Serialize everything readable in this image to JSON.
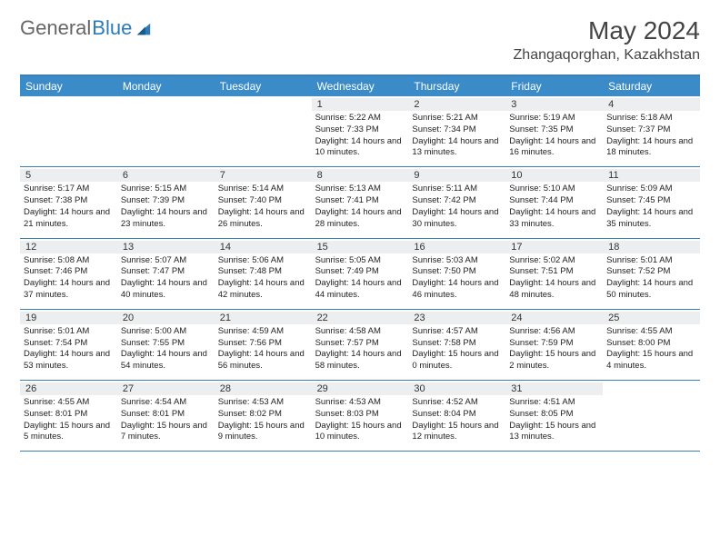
{
  "brand": {
    "part1": "General",
    "part2": "Blue"
  },
  "title": "May 2024",
  "location": "Zhangaqorghan, Kazakhstan",
  "colors": {
    "header_bg": "#3b8bc9",
    "border": "#3b7fb5",
    "daynum_bg": "#eceeef",
    "text": "#222222"
  },
  "dayNames": [
    "Sunday",
    "Monday",
    "Tuesday",
    "Wednesday",
    "Thursday",
    "Friday",
    "Saturday"
  ],
  "weeks": [
    [
      {
        "n": "",
        "sr": "",
        "ss": "",
        "dl": ""
      },
      {
        "n": "",
        "sr": "",
        "ss": "",
        "dl": ""
      },
      {
        "n": "",
        "sr": "",
        "ss": "",
        "dl": ""
      },
      {
        "n": "1",
        "sr": "Sunrise: 5:22 AM",
        "ss": "Sunset: 7:33 PM",
        "dl": "Daylight: 14 hours and 10 minutes."
      },
      {
        "n": "2",
        "sr": "Sunrise: 5:21 AM",
        "ss": "Sunset: 7:34 PM",
        "dl": "Daylight: 14 hours and 13 minutes."
      },
      {
        "n": "3",
        "sr": "Sunrise: 5:19 AM",
        "ss": "Sunset: 7:35 PM",
        "dl": "Daylight: 14 hours and 16 minutes."
      },
      {
        "n": "4",
        "sr": "Sunrise: 5:18 AM",
        "ss": "Sunset: 7:37 PM",
        "dl": "Daylight: 14 hours and 18 minutes."
      }
    ],
    [
      {
        "n": "5",
        "sr": "Sunrise: 5:17 AM",
        "ss": "Sunset: 7:38 PM",
        "dl": "Daylight: 14 hours and 21 minutes."
      },
      {
        "n": "6",
        "sr": "Sunrise: 5:15 AM",
        "ss": "Sunset: 7:39 PM",
        "dl": "Daylight: 14 hours and 23 minutes."
      },
      {
        "n": "7",
        "sr": "Sunrise: 5:14 AM",
        "ss": "Sunset: 7:40 PM",
        "dl": "Daylight: 14 hours and 26 minutes."
      },
      {
        "n": "8",
        "sr": "Sunrise: 5:13 AM",
        "ss": "Sunset: 7:41 PM",
        "dl": "Daylight: 14 hours and 28 minutes."
      },
      {
        "n": "9",
        "sr": "Sunrise: 5:11 AM",
        "ss": "Sunset: 7:42 PM",
        "dl": "Daylight: 14 hours and 30 minutes."
      },
      {
        "n": "10",
        "sr": "Sunrise: 5:10 AM",
        "ss": "Sunset: 7:44 PM",
        "dl": "Daylight: 14 hours and 33 minutes."
      },
      {
        "n": "11",
        "sr": "Sunrise: 5:09 AM",
        "ss": "Sunset: 7:45 PM",
        "dl": "Daylight: 14 hours and 35 minutes."
      }
    ],
    [
      {
        "n": "12",
        "sr": "Sunrise: 5:08 AM",
        "ss": "Sunset: 7:46 PM",
        "dl": "Daylight: 14 hours and 37 minutes."
      },
      {
        "n": "13",
        "sr": "Sunrise: 5:07 AM",
        "ss": "Sunset: 7:47 PM",
        "dl": "Daylight: 14 hours and 40 minutes."
      },
      {
        "n": "14",
        "sr": "Sunrise: 5:06 AM",
        "ss": "Sunset: 7:48 PM",
        "dl": "Daylight: 14 hours and 42 minutes."
      },
      {
        "n": "15",
        "sr": "Sunrise: 5:05 AM",
        "ss": "Sunset: 7:49 PM",
        "dl": "Daylight: 14 hours and 44 minutes."
      },
      {
        "n": "16",
        "sr": "Sunrise: 5:03 AM",
        "ss": "Sunset: 7:50 PM",
        "dl": "Daylight: 14 hours and 46 minutes."
      },
      {
        "n": "17",
        "sr": "Sunrise: 5:02 AM",
        "ss": "Sunset: 7:51 PM",
        "dl": "Daylight: 14 hours and 48 minutes."
      },
      {
        "n": "18",
        "sr": "Sunrise: 5:01 AM",
        "ss": "Sunset: 7:52 PM",
        "dl": "Daylight: 14 hours and 50 minutes."
      }
    ],
    [
      {
        "n": "19",
        "sr": "Sunrise: 5:01 AM",
        "ss": "Sunset: 7:54 PM",
        "dl": "Daylight: 14 hours and 53 minutes."
      },
      {
        "n": "20",
        "sr": "Sunrise: 5:00 AM",
        "ss": "Sunset: 7:55 PM",
        "dl": "Daylight: 14 hours and 54 minutes."
      },
      {
        "n": "21",
        "sr": "Sunrise: 4:59 AM",
        "ss": "Sunset: 7:56 PM",
        "dl": "Daylight: 14 hours and 56 minutes."
      },
      {
        "n": "22",
        "sr": "Sunrise: 4:58 AM",
        "ss": "Sunset: 7:57 PM",
        "dl": "Daylight: 14 hours and 58 minutes."
      },
      {
        "n": "23",
        "sr": "Sunrise: 4:57 AM",
        "ss": "Sunset: 7:58 PM",
        "dl": "Daylight: 15 hours and 0 minutes."
      },
      {
        "n": "24",
        "sr": "Sunrise: 4:56 AM",
        "ss": "Sunset: 7:59 PM",
        "dl": "Daylight: 15 hours and 2 minutes."
      },
      {
        "n": "25",
        "sr": "Sunrise: 4:55 AM",
        "ss": "Sunset: 8:00 PM",
        "dl": "Daylight: 15 hours and 4 minutes."
      }
    ],
    [
      {
        "n": "26",
        "sr": "Sunrise: 4:55 AM",
        "ss": "Sunset: 8:01 PM",
        "dl": "Daylight: 15 hours and 5 minutes."
      },
      {
        "n": "27",
        "sr": "Sunrise: 4:54 AM",
        "ss": "Sunset: 8:01 PM",
        "dl": "Daylight: 15 hours and 7 minutes."
      },
      {
        "n": "28",
        "sr": "Sunrise: 4:53 AM",
        "ss": "Sunset: 8:02 PM",
        "dl": "Daylight: 15 hours and 9 minutes."
      },
      {
        "n": "29",
        "sr": "Sunrise: 4:53 AM",
        "ss": "Sunset: 8:03 PM",
        "dl": "Daylight: 15 hours and 10 minutes."
      },
      {
        "n": "30",
        "sr": "Sunrise: 4:52 AM",
        "ss": "Sunset: 8:04 PM",
        "dl": "Daylight: 15 hours and 12 minutes."
      },
      {
        "n": "31",
        "sr": "Sunrise: 4:51 AM",
        "ss": "Sunset: 8:05 PM",
        "dl": "Daylight: 15 hours and 13 minutes."
      },
      {
        "n": "",
        "sr": "",
        "ss": "",
        "dl": ""
      }
    ]
  ]
}
